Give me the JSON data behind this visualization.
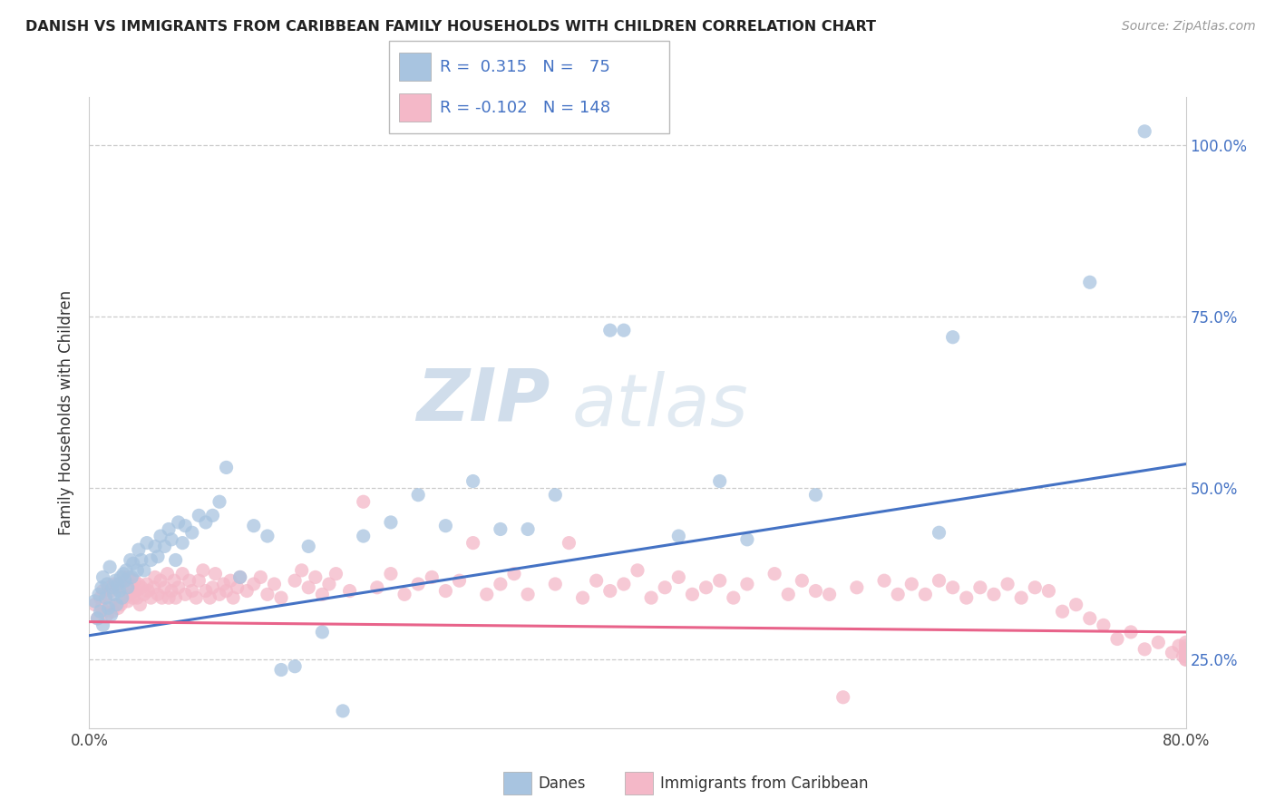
{
  "title": "DANISH VS IMMIGRANTS FROM CARIBBEAN FAMILY HOUSEHOLDS WITH CHILDREN CORRELATION CHART",
  "source": "Source: ZipAtlas.com",
  "ylabel": "Family Households with Children",
  "x_min": 0.0,
  "x_max": 0.8,
  "y_min": 0.15,
  "y_max": 1.07,
  "x_tick_positions": [
    0.0,
    0.1,
    0.2,
    0.3,
    0.4,
    0.5,
    0.6,
    0.7,
    0.8
  ],
  "x_tick_labels": [
    "0.0%",
    "",
    "",
    "",
    "",
    "",
    "",
    "",
    "80.0%"
  ],
  "y_tick_positions": [
    0.25,
    0.5,
    0.75,
    1.0
  ],
  "y_tick_labels": [
    "25.0%",
    "50.0%",
    "75.0%",
    "100.0%"
  ],
  "danes_color": "#a8c4e0",
  "caribb_color": "#f4b8c8",
  "danes_line_color": "#4472c4",
  "caribb_line_color": "#e8638a",
  "danes_R": 0.315,
  "danes_N": 75,
  "caribb_R": -0.102,
  "caribb_N": 148,
  "danes_line_x": [
    0.0,
    0.8
  ],
  "danes_line_y": [
    0.285,
    0.535
  ],
  "caribb_line_x": [
    0.0,
    0.8
  ],
  "caribb_line_y": [
    0.305,
    0.29
  ],
  "watermark_zip": "ZIP",
  "watermark_atlas": "atlas",
  "danes_x": [
    0.004,
    0.006,
    0.007,
    0.008,
    0.009,
    0.01,
    0.01,
    0.012,
    0.013,
    0.014,
    0.015,
    0.016,
    0.017,
    0.018,
    0.019,
    0.02,
    0.021,
    0.022,
    0.023,
    0.024,
    0.025,
    0.026,
    0.027,
    0.028,
    0.03,
    0.031,
    0.032,
    0.035,
    0.036,
    0.038,
    0.04,
    0.042,
    0.045,
    0.048,
    0.05,
    0.052,
    0.055,
    0.058,
    0.06,
    0.063,
    0.065,
    0.068,
    0.07,
    0.075,
    0.08,
    0.085,
    0.09,
    0.095,
    0.1,
    0.11,
    0.12,
    0.13,
    0.14,
    0.15,
    0.16,
    0.17,
    0.185,
    0.2,
    0.22,
    0.24,
    0.26,
    0.28,
    0.3,
    0.32,
    0.34,
    0.38,
    0.39,
    0.43,
    0.46,
    0.48,
    0.53,
    0.62,
    0.63,
    0.73,
    0.77
  ],
  "danes_y": [
    0.335,
    0.31,
    0.345,
    0.32,
    0.355,
    0.3,
    0.37,
    0.34,
    0.36,
    0.325,
    0.385,
    0.315,
    0.355,
    0.345,
    0.365,
    0.33,
    0.36,
    0.35,
    0.37,
    0.34,
    0.375,
    0.365,
    0.38,
    0.355,
    0.395,
    0.37,
    0.39,
    0.38,
    0.41,
    0.395,
    0.38,
    0.42,
    0.395,
    0.415,
    0.4,
    0.43,
    0.415,
    0.44,
    0.425,
    0.395,
    0.45,
    0.42,
    0.445,
    0.435,
    0.46,
    0.45,
    0.46,
    0.48,
    0.53,
    0.37,
    0.445,
    0.43,
    0.235,
    0.24,
    0.415,
    0.29,
    0.175,
    0.43,
    0.45,
    0.49,
    0.445,
    0.51,
    0.44,
    0.44,
    0.49,
    0.73,
    0.73,
    0.43,
    0.51,
    0.425,
    0.49,
    0.435,
    0.72,
    0.8,
    1.02
  ],
  "caribb_x": [
    0.004,
    0.006,
    0.008,
    0.009,
    0.01,
    0.011,
    0.012,
    0.013,
    0.014,
    0.015,
    0.016,
    0.017,
    0.018,
    0.019,
    0.02,
    0.021,
    0.022,
    0.023,
    0.024,
    0.025,
    0.026,
    0.027,
    0.028,
    0.029,
    0.03,
    0.031,
    0.032,
    0.033,
    0.034,
    0.035,
    0.036,
    0.037,
    0.038,
    0.04,
    0.042,
    0.043,
    0.045,
    0.047,
    0.048,
    0.05,
    0.052,
    0.053,
    0.055,
    0.057,
    0.058,
    0.06,
    0.062,
    0.063,
    0.065,
    0.068,
    0.07,
    0.073,
    0.075,
    0.078,
    0.08,
    0.083,
    0.085,
    0.088,
    0.09,
    0.092,
    0.095,
    0.098,
    0.1,
    0.103,
    0.105,
    0.108,
    0.11,
    0.115,
    0.12,
    0.125,
    0.13,
    0.135,
    0.14,
    0.15,
    0.155,
    0.16,
    0.165,
    0.17,
    0.175,
    0.18,
    0.19,
    0.2,
    0.21,
    0.22,
    0.23,
    0.24,
    0.25,
    0.26,
    0.27,
    0.28,
    0.29,
    0.3,
    0.31,
    0.32,
    0.34,
    0.35,
    0.36,
    0.37,
    0.38,
    0.39,
    0.4,
    0.41,
    0.42,
    0.43,
    0.44,
    0.45,
    0.46,
    0.47,
    0.48,
    0.5,
    0.51,
    0.52,
    0.53,
    0.54,
    0.55,
    0.56,
    0.58,
    0.59,
    0.6,
    0.61,
    0.62,
    0.63,
    0.64,
    0.65,
    0.66,
    0.67,
    0.68,
    0.69,
    0.7,
    0.71,
    0.72,
    0.73,
    0.74,
    0.75,
    0.76,
    0.77,
    0.78,
    0.79,
    0.795,
    0.798,
    0.8,
    0.8,
    0.8,
    0.8,
    0.8,
    0.8,
    0.8,
    0.8
  ],
  "caribb_y": [
    0.33,
    0.31,
    0.34,
    0.325,
    0.35,
    0.32,
    0.345,
    0.315,
    0.355,
    0.33,
    0.35,
    0.32,
    0.36,
    0.33,
    0.355,
    0.325,
    0.36,
    0.33,
    0.355,
    0.37,
    0.34,
    0.365,
    0.335,
    0.37,
    0.345,
    0.355,
    0.34,
    0.365,
    0.35,
    0.34,
    0.36,
    0.33,
    0.355,
    0.345,
    0.36,
    0.35,
    0.34,
    0.355,
    0.37,
    0.345,
    0.365,
    0.34,
    0.355,
    0.375,
    0.34,
    0.35,
    0.365,
    0.34,
    0.355,
    0.375,
    0.345,
    0.365,
    0.35,
    0.34,
    0.365,
    0.38,
    0.35,
    0.34,
    0.355,
    0.375,
    0.345,
    0.36,
    0.35,
    0.365,
    0.34,
    0.355,
    0.37,
    0.35,
    0.36,
    0.37,
    0.345,
    0.36,
    0.34,
    0.365,
    0.38,
    0.355,
    0.37,
    0.345,
    0.36,
    0.375,
    0.35,
    0.48,
    0.355,
    0.375,
    0.345,
    0.36,
    0.37,
    0.35,
    0.365,
    0.42,
    0.345,
    0.36,
    0.375,
    0.345,
    0.36,
    0.42,
    0.34,
    0.365,
    0.35,
    0.36,
    0.38,
    0.34,
    0.355,
    0.37,
    0.345,
    0.355,
    0.365,
    0.34,
    0.36,
    0.375,
    0.345,
    0.365,
    0.35,
    0.345,
    0.195,
    0.355,
    0.365,
    0.345,
    0.36,
    0.345,
    0.365,
    0.355,
    0.34,
    0.355,
    0.345,
    0.36,
    0.34,
    0.355,
    0.35,
    0.32,
    0.33,
    0.31,
    0.3,
    0.28,
    0.29,
    0.265,
    0.275,
    0.26,
    0.27,
    0.255,
    0.275,
    0.265,
    0.25,
    0.26,
    0.255,
    0.25,
    0.27,
    0.26
  ]
}
